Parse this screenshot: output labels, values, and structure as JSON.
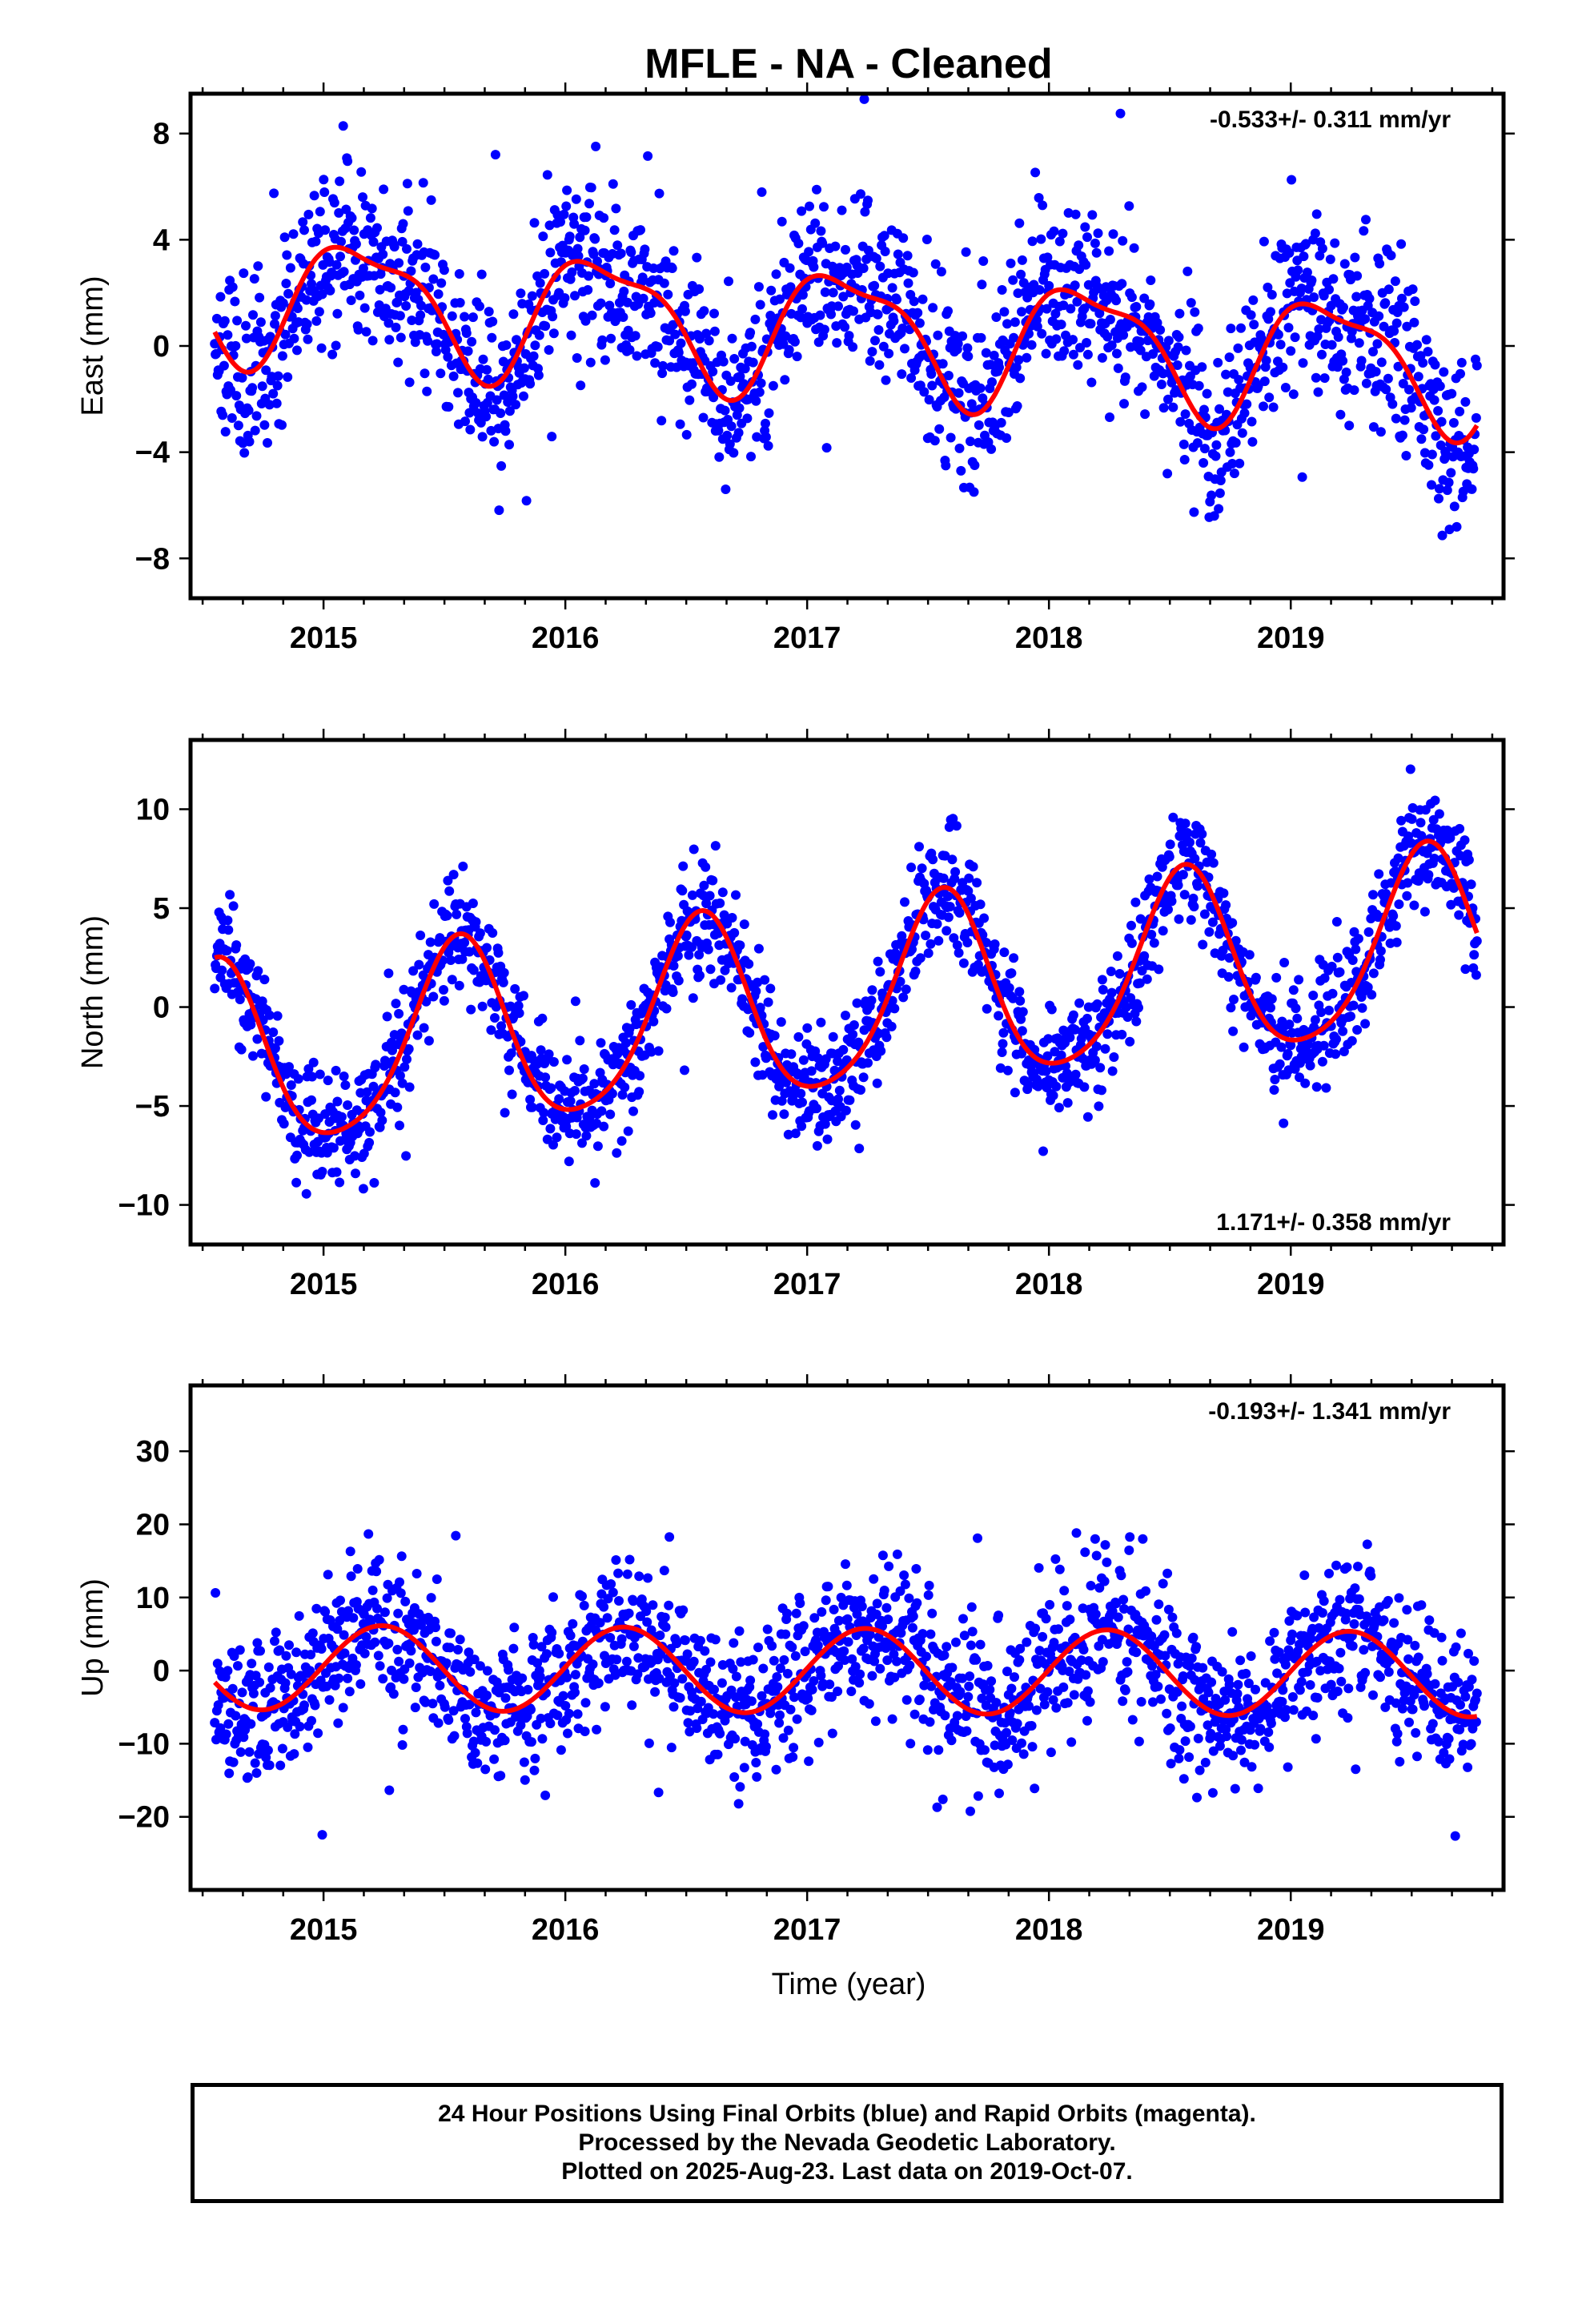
{
  "title": "MFLE  - NA - Cleaned",
  "xlabel": "Time (year)",
  "colors": {
    "final_orbits": "#0000ff",
    "fit_line": "#ff0000",
    "rapid_orbits": "#ff00ff"
  },
  "footer": {
    "line1": "24 Hour Positions Using Final Orbits (blue) and Rapid Orbits (magenta).",
    "line2": "Processed by the Nevada Geodetic Laboratory.",
    "line3": "Plotted on 2025-Aug-23. Last data on 2019-Oct-07."
  },
  "chart_data": [
    {
      "type": "scatter",
      "id": "east",
      "ylabel": "East (mm)",
      "rate_label": "-0.533+/- 0.311 mm/yr",
      "xlim": [
        2014.45,
        2019.88
      ],
      "ylim": [
        -9.5,
        9.5
      ],
      "xticks": [
        2015,
        2016,
        2017,
        2018,
        2019
      ],
      "yticks": [
        -8,
        -4,
        0,
        4,
        8
      ],
      "ytick_labels": [
        "−8",
        "−4",
        "0",
        "4",
        "8"
      ],
      "start": 2014.55,
      "end": 2019.77,
      "series": [
        {
          "kind": "points",
          "color": "#0000ff",
          "x_start": 2014.55,
          "x_end": 2019.77,
          "count": 1750,
          "seed": 11,
          "model": {
            "offset": 0.7,
            "rate": -0.533,
            "ref": 2017.0,
            "annual": [
              1.2,
              1.9
            ],
            "semiannual": [
              0.6,
              -0.4
            ],
            "noise": 1.6
          }
        },
        {
          "kind": "fit",
          "color": "#ff0000",
          "model": {
            "offset": 0.7,
            "rate": -0.533,
            "ref": 2017.0,
            "annual": [
              1.2,
              1.9
            ],
            "semiannual": [
              0.6,
              -0.4
            ]
          }
        }
      ]
    },
    {
      "type": "scatter",
      "id": "north",
      "ylabel": "North (mm)",
      "rate_label": "1.171+/- 0.358 mm/yr",
      "xlim": [
        2014.45,
        2019.88
      ],
      "ylim": [
        -12,
        13.5
      ],
      "xticks": [
        2015,
        2016,
        2017,
        2018,
        2019
      ],
      "yticks": [
        -10,
        -5,
        0,
        5,
        10
      ],
      "ytick_labels": [
        "−10",
        "−5",
        "0",
        "5",
        "10"
      ],
      "start": 2014.55,
      "end": 2019.77,
      "series": [
        {
          "kind": "points",
          "color": "#0000ff",
          "x_start": 2014.55,
          "x_end": 2019.77,
          "count": 1750,
          "seed": 23,
          "model": {
            "offset": 0.0,
            "rate": 1.171,
            "ref": 2017.0,
            "annual": [
              -4.4,
              -1.6
            ],
            "semiannual": [
              0.4,
              0.6
            ],
            "noise": 1.4
          }
        },
        {
          "kind": "fit",
          "color": "#ff0000",
          "model": {
            "offset": 0.0,
            "rate": 1.171,
            "ref": 2017.0,
            "annual": [
              -4.4,
              -1.6
            ],
            "semiannual": [
              0.4,
              0.6
            ]
          }
        }
      ]
    },
    {
      "type": "scatter",
      "id": "up",
      "ylabel": "Up (mm)",
      "rate_label": "-0.193+/- 1.341 mm/yr",
      "xlim": [
        2014.45,
        2019.88
      ],
      "ylim": [
        -30,
        39
      ],
      "xticks": [
        2015,
        2016,
        2017,
        2018,
        2019
      ],
      "yticks": [
        -20,
        -10,
        0,
        10,
        20,
        30
      ],
      "ytick_labels": [
        "−20",
        "−10",
        "0",
        "10",
        "20",
        "30"
      ],
      "start": 2014.55,
      "end": 2019.77,
      "series": [
        {
          "kind": "points",
          "color": "#0000ff",
          "x_start": 2014.55,
          "x_end": 2019.77,
          "count": 1750,
          "seed": 37,
          "model": {
            "offset": 0.0,
            "rate": -0.193,
            "ref": 2017.0,
            "annual": [
              0.3,
              5.8
            ],
            "semiannual": [
              0.0,
              0.0
            ],
            "noise": 5.0
          }
        },
        {
          "kind": "fit",
          "color": "#ff0000",
          "model": {
            "offset": 0.0,
            "rate": -0.193,
            "ref": 2017.0,
            "annual": [
              0.3,
              5.8
            ],
            "semiannual": [
              0.0,
              0.0
            ]
          }
        }
      ]
    }
  ]
}
